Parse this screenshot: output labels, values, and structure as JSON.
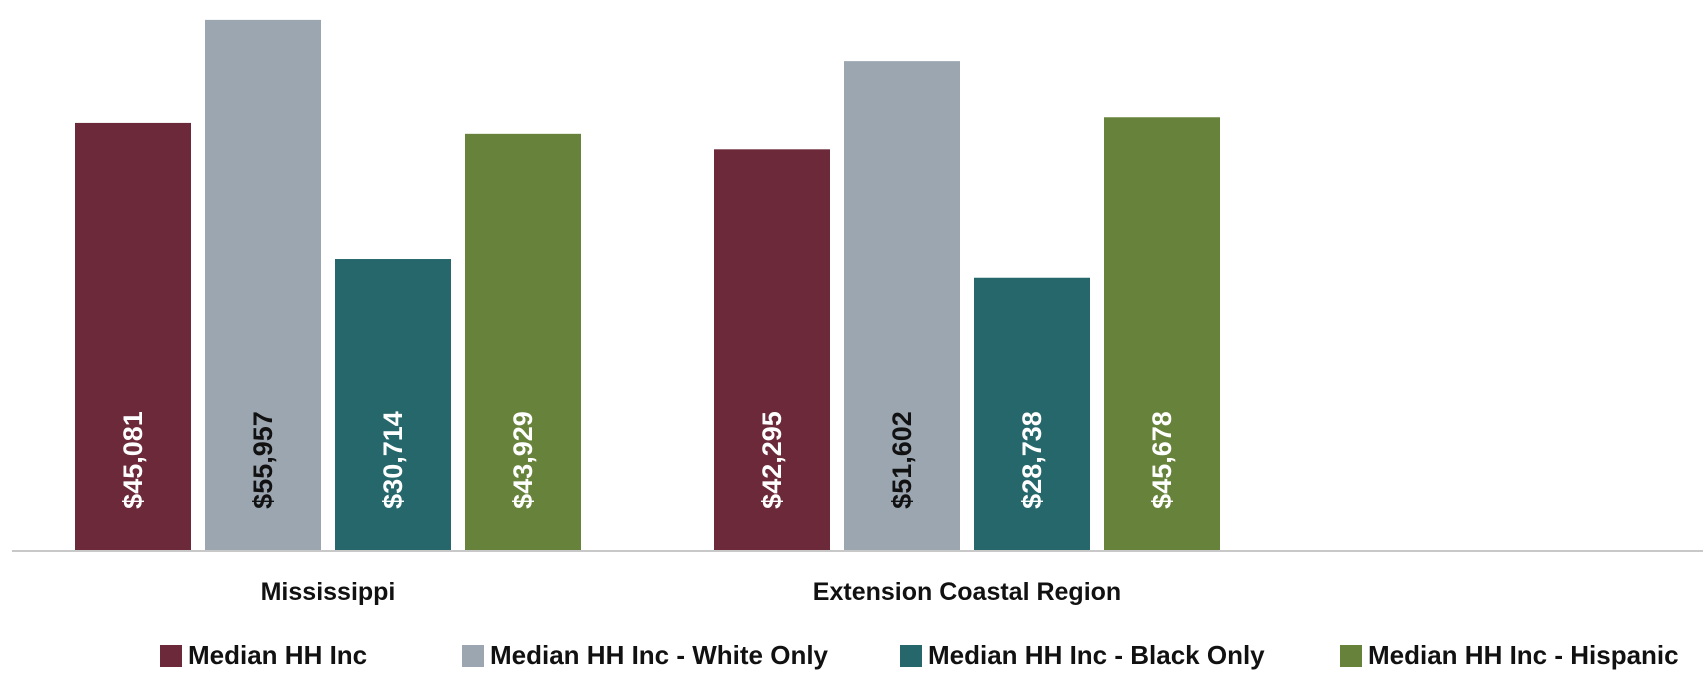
{
  "chart_data": {
    "type": "bar",
    "categories": [
      "Mississippi",
      "Extension Coastal Region"
    ],
    "series": [
      {
        "name": "Median HH Inc",
        "values": [
          45081,
          42295
        ],
        "labels": [
          "$45,081",
          "$42,295"
        ],
        "color": "#6B2939",
        "label_color": "#FFFFFF"
      },
      {
        "name": "Median HH Inc - White Only",
        "values": [
          55957,
          51602
        ],
        "labels": [
          "$55,957",
          "$51,602"
        ],
        "color": "#9BA6B0",
        "label_color": "#111111"
      },
      {
        "name": "Median HH Inc - Black Only",
        "values": [
          30714,
          28738
        ],
        "labels": [
          "$30,714",
          "$28,738"
        ],
        "color": "#25676B",
        "label_color": "#FFFFFF"
      },
      {
        "name": "Median HH Inc - Hispanic",
        "values": [
          43929,
          45678
        ],
        "labels": [
          "$43,929",
          "$45,678"
        ],
        "color": "#67823A",
        "label_color": "#FFFFFF"
      }
    ],
    "ylim": [
      0,
      57000
    ],
    "grid": false,
    "legend_position": "bottom"
  }
}
